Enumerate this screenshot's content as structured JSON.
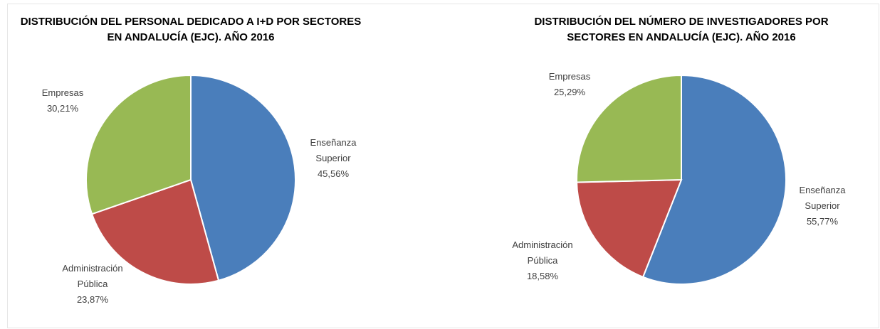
{
  "chart_data": [
    {
      "type": "pie",
      "title": "DISTRIBUCIÓN DEL PERSONAL DEDICADO A I+D POR SECTORES EN ANDALUCÍA (EJC). AÑO 2016",
      "categories": [
        "Enseñanza Superior",
        "Administración Pública",
        "Empresas"
      ],
      "values": [
        45.56,
        23.87,
        30.21
      ],
      "value_labels": [
        "45,56%",
        "23,87%",
        "30,21%"
      ],
      "colors": [
        "#4a7ebb",
        "#be4b48",
        "#98b954"
      ]
    },
    {
      "type": "pie",
      "title": "DISTRIBUCIÓN DEL NÚMERO DE INVESTIGADORES POR SECTORES EN ANDALUCÍA (EJC). AÑO 2016",
      "categories": [
        "Enseñanza Superior",
        "Administración Pública",
        "Empresas"
      ],
      "values": [
        55.77,
        18.58,
        25.29
      ],
      "value_labels": [
        "55,77%",
        "18,58%",
        "25,29%"
      ],
      "colors": [
        "#4a7ebb",
        "#be4b48",
        "#98b954"
      ]
    }
  ]
}
